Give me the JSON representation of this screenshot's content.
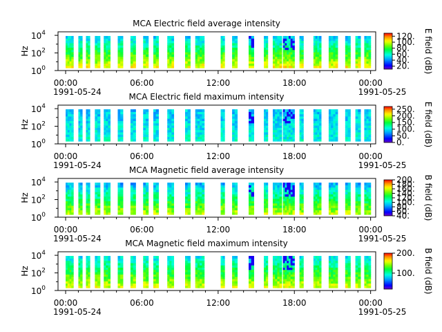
{
  "chart_data": [
    {
      "type": "heatmap",
      "title": "MCA  Electric field average intensity",
      "ylabel": "Hz",
      "y_scale": "log",
      "y_ticks": [
        {
          "exp": "0"
        },
        {
          "exp": "2"
        },
        {
          "exp": "4"
        }
      ],
      "y_tick_base": "10",
      "x_ticks": [
        "00:00",
        "06:00",
        "12:00",
        "18:00",
        "00:00"
      ],
      "x_dates": [
        "1991-05-24",
        "1991-05-25"
      ],
      "colorbar": {
        "label": "E field (dB)",
        "range": [
          10,
          130
        ],
        "ticks": [
          "20.",
          "40.",
          "60.",
          "80.",
          "100.",
          "120."
        ],
        "values": [
          20,
          40,
          60,
          80,
          100,
          120
        ]
      }
    },
    {
      "type": "heatmap",
      "title": "MCA  Electric field maximum intensity",
      "ylabel": "Hz",
      "y_scale": "log",
      "y_ticks": [
        {
          "exp": "0"
        },
        {
          "exp": "2"
        },
        {
          "exp": "4"
        }
      ],
      "y_tick_base": "10",
      "x_ticks": [
        "00:00",
        "06:00",
        "12:00",
        "18:00",
        "00:00"
      ],
      "x_dates": [
        "1991-05-24",
        "1991-05-25"
      ],
      "colorbar": {
        "label": "E field (dB)",
        "range": [
          0,
          270
        ],
        "ticks": [
          "0.",
          "50.",
          "100.",
          "150.",
          "200.",
          "250."
        ],
        "values": [
          0,
          50,
          100,
          150,
          200,
          250
        ]
      }
    },
    {
      "type": "heatmap",
      "title": "MCA  Magnetic field average intensity",
      "ylabel": "Hz",
      "y_scale": "log",
      "y_ticks": [
        {
          "exp": "0"
        },
        {
          "exp": "2"
        },
        {
          "exp": "4"
        }
      ],
      "y_tick_base": "10",
      "x_ticks": [
        "00:00",
        "06:00",
        "12:00",
        "18:00",
        "00:00"
      ],
      "x_dates": [
        "1991-05-24",
        "1991-05-25"
      ],
      "colorbar": {
        "label": "B field (dB)",
        "range": [
          40,
          200
        ],
        "ticks": [
          "40.",
          "60.",
          "80.",
          "100.",
          "120.",
          "140.",
          "160.",
          "180.",
          "200."
        ],
        "values": [
          40,
          60,
          80,
          100,
          120,
          140,
          160,
          180,
          200
        ]
      }
    },
    {
      "type": "heatmap",
      "title": "MCA  Magnetic field maximum intensity",
      "ylabel": "Hz",
      "y_scale": "log",
      "y_ticks": [
        {
          "exp": "0"
        },
        {
          "exp": "2"
        },
        {
          "exp": "4"
        }
      ],
      "y_tick_base": "10",
      "x_ticks": [
        "00:00",
        "06:00",
        "12:00",
        "18:00",
        "00:00"
      ],
      "x_dates": [
        "1991-05-24",
        "1991-05-25"
      ],
      "colorbar": {
        "label": "B field (dB)",
        "range": [
          20,
          200
        ],
        "ticks": [
          "100.",
          "200."
        ],
        "values": [
          100,
          200
        ]
      }
    }
  ],
  "data_segments_hours": [
    [
      0.0,
      0.6
    ],
    [
      1.0,
      1.3
    ],
    [
      1.6,
      1.9
    ],
    [
      2.3,
      2.7
    ],
    [
      3.0,
      3.5
    ],
    [
      4.1,
      4.5
    ],
    [
      5.1,
      5.5
    ],
    [
      6.1,
      6.5
    ],
    [
      6.9,
      7.3
    ],
    [
      8.0,
      8.5
    ],
    [
      9.4,
      9.8
    ],
    [
      10.2,
      10.9
    ],
    [
      12.2,
      12.5
    ],
    [
      13.1,
      13.5
    ],
    [
      14.4,
      14.8
    ],
    [
      15.6,
      15.9
    ],
    [
      16.3,
      17.0
    ],
    [
      17.1,
      18.0
    ],
    [
      18.4,
      18.7
    ],
    [
      19.5,
      20.1
    ],
    [
      20.7,
      21.4
    ],
    [
      22.0,
      22.4
    ],
    [
      22.8,
      23.2
    ],
    [
      23.5,
      24.0
    ]
  ]
}
